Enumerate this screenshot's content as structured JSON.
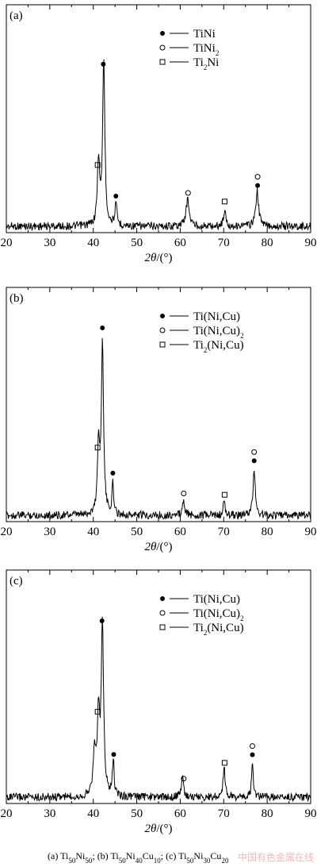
{
  "chart_data": [
    {
      "type": "line",
      "panel_label": "(a)",
      "xlabel_sym": "2θ",
      "xlabel_unit": "/(°)",
      "xlim": [
        20,
        90
      ],
      "xticks": [
        "20",
        "30",
        "40",
        "50",
        "60",
        "70",
        "80",
        "90"
      ],
      "legend": [
        {
          "marker": "filled-circle",
          "parts": [
            {
              "t": "TiNi"
            }
          ]
        },
        {
          "marker": "open-circle",
          "parts": [
            {
              "t": "TiNi"
            },
            {
              "t": "2",
              "sub": true
            }
          ]
        },
        {
          "marker": "open-square",
          "parts": [
            {
              "t": "Ti"
            },
            {
              "t": "2",
              "sub": true
            },
            {
              "t": "Ni"
            }
          ]
        }
      ],
      "peaks": [
        {
          "x": 41.2,
          "h": 0.4,
          "w": 0.3
        },
        {
          "x": 42.4,
          "h": 1.0,
          "w": 0.3
        },
        {
          "x": 45.2,
          "h": 0.12,
          "w": 0.3
        },
        {
          "x": 61.7,
          "h": 0.16,
          "w": 0.45
        },
        {
          "x": 70.2,
          "h": 0.1,
          "w": 0.3
        },
        {
          "x": 77.7,
          "h": 0.21,
          "w": 0.4
        }
      ],
      "markers": [
        {
          "x": 42.3,
          "symbols": [
            "filled-circle"
          ]
        },
        {
          "x": 41.0,
          "symbols": [
            "open-square"
          ]
        },
        {
          "x": 45.2,
          "symbols": [
            "filled-circle"
          ]
        },
        {
          "x": 61.8,
          "symbols": [
            "open-circle"
          ]
        },
        {
          "x": 70.2,
          "symbols": [
            "open-square"
          ]
        },
        {
          "x": 77.8,
          "symbols": [
            "filled-circle",
            "open-circle"
          ]
        }
      ]
    },
    {
      "type": "line",
      "panel_label": "(b)",
      "xlabel_sym": "2θ",
      "xlabel_unit": "/(°)",
      "xlim": [
        20,
        90
      ],
      "xticks": [
        "20",
        "30",
        "40",
        "50",
        "60",
        "70",
        "80",
        "90"
      ],
      "legend": [
        {
          "marker": "filled-circle",
          "parts": [
            {
              "t": "Ti(Ni,Cu)"
            }
          ]
        },
        {
          "marker": "open-circle",
          "parts": [
            {
              "t": "Ti(Ni,Cu)"
            },
            {
              "t": "2",
              "sub": true
            }
          ]
        },
        {
          "marker": "open-square",
          "parts": [
            {
              "t": "Ti"
            },
            {
              "t": "2",
              "sub": true
            },
            {
              "t": "(Ni,Cu)"
            }
          ]
        }
      ],
      "peaks": [
        {
          "x": 41.2,
          "h": 0.4,
          "w": 0.3
        },
        {
          "x": 42.1,
          "h": 1.0,
          "w": 0.3
        },
        {
          "x": 44.5,
          "h": 0.18,
          "w": 0.22
        },
        {
          "x": 60.8,
          "h": 0.08,
          "w": 0.3
        },
        {
          "x": 70.1,
          "h": 0.09,
          "w": 0.2
        },
        {
          "x": 77.0,
          "h": 0.27,
          "w": 0.3
        }
      ],
      "markers": [
        {
          "x": 42.1,
          "symbols": [
            "filled-circle"
          ]
        },
        {
          "x": 41.0,
          "symbols": [
            "open-square"
          ]
        },
        {
          "x": 44.5,
          "symbols": [
            "filled-circle"
          ]
        },
        {
          "x": 60.8,
          "symbols": [
            "open-circle"
          ]
        },
        {
          "x": 70.2,
          "symbols": [
            "open-square"
          ]
        },
        {
          "x": 77.0,
          "symbols": [
            "filled-circle",
            "open-circle"
          ]
        }
      ]
    },
    {
      "type": "line",
      "panel_label": "(c)",
      "xlabel_sym": "2θ",
      "xlabel_unit": "/(°)",
      "xlim": [
        20,
        90
      ],
      "xticks": [
        "20",
        "30",
        "40",
        "50",
        "60",
        "70",
        "80",
        "90"
      ],
      "legend": [
        {
          "marker": "filled-circle",
          "parts": [
            {
              "t": "Ti(Ni,Cu)"
            }
          ]
        },
        {
          "marker": "open-circle",
          "parts": [
            {
              "t": "Ti(Ni,Cu)"
            },
            {
              "t": "2",
              "sub": true
            }
          ]
        },
        {
          "marker": "open-square",
          "parts": [
            {
              "t": "Ti"
            },
            {
              "t": "2",
              "sub": true
            },
            {
              "t": "(Ni,Cu)"
            }
          ]
        }
      ],
      "peaks": [
        {
          "x": 40.3,
          "h": 0.25,
          "w": 0.4
        },
        {
          "x": 41.2,
          "h": 0.45,
          "w": 0.3
        },
        {
          "x": 42.1,
          "h": 1.0,
          "w": 0.32
        },
        {
          "x": 44.6,
          "h": 0.22,
          "w": 0.22
        },
        {
          "x": 60.5,
          "h": 0.13,
          "w": 0.28
        },
        {
          "x": 70.1,
          "h": 0.17,
          "w": 0.3
        },
        {
          "x": 76.6,
          "h": 0.2,
          "w": 0.22
        }
      ],
      "markers": [
        {
          "x": 42.0,
          "symbols": [
            "filled-circle"
          ]
        },
        {
          "x": 41.0,
          "symbols": [
            "open-square"
          ]
        },
        {
          "x": 44.7,
          "symbols": [
            "filled-circle"
          ]
        },
        {
          "x": 60.8,
          "symbols": [
            "open-circle"
          ]
        },
        {
          "x": 70.2,
          "symbols": [
            "open-square"
          ]
        },
        {
          "x": 76.6,
          "symbols": [
            "filled-circle",
            "open-circle"
          ]
        }
      ]
    }
  ],
  "caption": {
    "items": [
      {
        "parts": [
          {
            "t": "(a)  Ti"
          },
          {
            "t": "50",
            "sub": true
          },
          {
            "t": "Ni"
          },
          {
            "t": "50",
            "sub": true
          },
          {
            "t": ";  "
          }
        ]
      },
      {
        "parts": [
          {
            "t": "(b)  Ti"
          },
          {
            "t": "50",
            "sub": true
          },
          {
            "t": "Ni"
          },
          {
            "t": "40",
            "sub": true
          },
          {
            "t": "Cu"
          },
          {
            "t": "10",
            "sub": true
          },
          {
            "t": "; "
          }
        ]
      },
      {
        "parts": [
          {
            "t": "(c) Ti"
          },
          {
            "t": "50",
            "sub": true
          },
          {
            "t": "Ni"
          },
          {
            "t": "30",
            "sub": true
          },
          {
            "t": "Cu"
          },
          {
            "t": "20",
            "sub": true
          }
        ]
      }
    ]
  },
  "watermark": "中国有色金属在线",
  "colors": {
    "ink": "#000000",
    "watermark": "#f2b8b8"
  }
}
